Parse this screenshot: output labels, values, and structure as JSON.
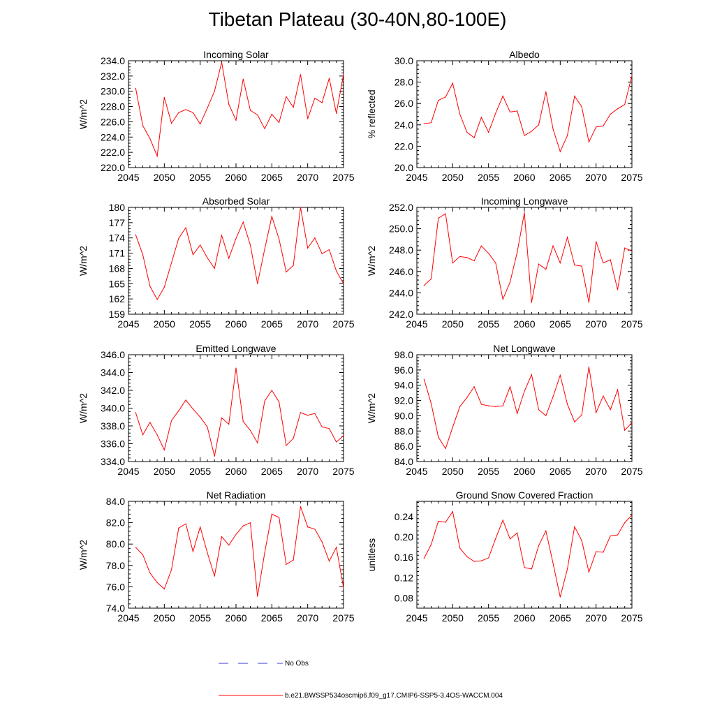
{
  "title": "Tibetan Plateau (30-40N,80-100E)",
  "colors": {
    "model": "#ff0000",
    "obs": "#3a3ad6",
    "axis": "#000000"
  },
  "legend": [
    {
      "label": "No Obs",
      "style": "dashed",
      "color": "#3a3ad6"
    },
    {
      "label": "b.e21.BWSSP534oscmip6.f09_g17.CMIP6-SSP5-3.4OS-WACCM.004",
      "style": "solid",
      "color": "#ff0000"
    }
  ],
  "chart_data": [
    {
      "type": "line",
      "title": "Incoming Solar",
      "ylabel": "W/m^2",
      "ylim": [
        220,
        234
      ],
      "yticks": [
        220,
        222,
        224,
        226,
        228,
        230,
        232,
        234
      ],
      "ydecimals": 1,
      "xlim": [
        2045,
        2075
      ],
      "xticks": [
        2045,
        2050,
        2055,
        2060,
        2065,
        2070,
        2075
      ],
      "x": [
        2046,
        2047,
        2048,
        2049,
        2050,
        2051,
        2052,
        2053,
        2054,
        2055,
        2056,
        2057,
        2058,
        2059,
        2060,
        2061,
        2062,
        2063,
        2064,
        2065,
        2066,
        2067,
        2068,
        2069,
        2070,
        2071,
        2072,
        2073,
        2074,
        2075
      ],
      "values": [
        230.4,
        225.5,
        223.8,
        221.5,
        229.2,
        225.8,
        227.2,
        227.6,
        227.2,
        225.7,
        227.8,
        230.0,
        233.8,
        228.3,
        226.2,
        231.6,
        227.5,
        226.9,
        225.1,
        227.0,
        225.9,
        229.3,
        227.9,
        232.2,
        226.4,
        229.1,
        228.5,
        231.7,
        227.1,
        232.2
      ]
    },
    {
      "type": "line",
      "title": "Albedo",
      "ylabel": "% reflected",
      "ylim": [
        20,
        30
      ],
      "yticks": [
        20,
        22,
        24,
        26,
        28,
        30
      ],
      "ydecimals": 1,
      "xlim": [
        2045,
        2075
      ],
      "xticks": [
        2045,
        2050,
        2055,
        2060,
        2065,
        2070,
        2075
      ],
      "x": [
        2046,
        2047,
        2048,
        2049,
        2050,
        2051,
        2052,
        2053,
        2054,
        2055,
        2056,
        2057,
        2058,
        2059,
        2060,
        2061,
        2062,
        2063,
        2064,
        2065,
        2066,
        2067,
        2068,
        2069,
        2070,
        2071,
        2072,
        2073,
        2074,
        2075
      ],
      "values": [
        24.1,
        24.2,
        26.3,
        26.6,
        27.9,
        25.0,
        23.3,
        22.8,
        24.7,
        23.3,
        25.1,
        26.7,
        25.2,
        25.3,
        23.0,
        23.4,
        24.0,
        27.1,
        23.6,
        21.5,
        23.0,
        26.7,
        25.7,
        22.4,
        23.8,
        23.9,
        25.0,
        25.5,
        25.9,
        28.6
      ]
    },
    {
      "type": "line",
      "title": "Absorbed Solar",
      "ylabel": "W/m^2",
      "ylim": [
        159,
        180
      ],
      "yticks": [
        159,
        162,
        165,
        168,
        171,
        174,
        177,
        180
      ],
      "ydecimals": 0,
      "xlim": [
        2045,
        2075
      ],
      "xticks": [
        2045,
        2050,
        2055,
        2060,
        2065,
        2070,
        2075
      ],
      "x": [
        2046,
        2047,
        2048,
        2049,
        2050,
        2051,
        2052,
        2053,
        2054,
        2055,
        2056,
        2057,
        2058,
        2059,
        2060,
        2061,
        2062,
        2063,
        2064,
        2065,
        2066,
        2067,
        2068,
        2069,
        2070,
        2071,
        2072,
        2073,
        2074,
        2075
      ],
      "values": [
        174.6,
        170.7,
        164.5,
        161.9,
        164.3,
        169.1,
        173.9,
        176.0,
        170.7,
        172.6,
        170.1,
        168.0,
        174.5,
        170.0,
        173.9,
        177.1,
        172.6,
        165.0,
        171.8,
        178.2,
        173.8,
        167.3,
        168.6,
        180.0,
        172.0,
        174.0,
        170.9,
        171.7,
        167.5,
        165.0
      ]
    },
    {
      "type": "line",
      "title": "Incoming Longwave",
      "ylabel": "W/m^2",
      "ylim": [
        242,
        252
      ],
      "yticks": [
        242,
        244,
        246,
        248,
        250,
        252
      ],
      "ydecimals": 1,
      "xlim": [
        2045,
        2075
      ],
      "xticks": [
        2045,
        2050,
        2055,
        2060,
        2065,
        2070,
        2075
      ],
      "x": [
        2046,
        2047,
        2048,
        2049,
        2050,
        2051,
        2052,
        2053,
        2054,
        2055,
        2056,
        2057,
        2058,
        2059,
        2060,
        2061,
        2062,
        2063,
        2064,
        2065,
        2066,
        2067,
        2068,
        2069,
        2070,
        2071,
        2072,
        2073,
        2074,
        2075
      ],
      "values": [
        244.7,
        245.3,
        251.0,
        251.4,
        246.8,
        247.4,
        247.3,
        247.0,
        248.4,
        247.7,
        246.8,
        243.4,
        245.0,
        247.8,
        251.5,
        243.1,
        246.7,
        246.2,
        248.4,
        246.8,
        249.2,
        246.6,
        246.5,
        243.1,
        248.8,
        246.8,
        247.1,
        244.3,
        248.2,
        247.9
      ]
    },
    {
      "type": "line",
      "title": "Emitted Longwave",
      "ylabel": "W/m^2",
      "ylim": [
        334,
        346
      ],
      "yticks": [
        334,
        336,
        338,
        340,
        342,
        344,
        346
      ],
      "ydecimals": 1,
      "xlim": [
        2045,
        2075
      ],
      "xticks": [
        2045,
        2050,
        2055,
        2060,
        2065,
        2070,
        2075
      ],
      "x": [
        2046,
        2047,
        2048,
        2049,
        2050,
        2051,
        2052,
        2053,
        2054,
        2055,
        2056,
        2057,
        2058,
        2059,
        2060,
        2061,
        2062,
        2063,
        2064,
        2065,
        2066,
        2067,
        2068,
        2069,
        2070,
        2071,
        2072,
        2073,
        2074,
        2075
      ],
      "values": [
        339.5,
        337.0,
        338.4,
        337.0,
        335.3,
        338.6,
        339.7,
        340.9,
        339.9,
        339.0,
        337.9,
        334.6,
        338.9,
        338.2,
        344.5,
        338.5,
        337.5,
        336.1,
        340.8,
        342.0,
        340.7,
        335.8,
        336.6,
        339.5,
        339.2,
        339.4,
        337.9,
        337.7,
        336.2,
        336.9
      ]
    },
    {
      "type": "line",
      "title": "Net Longwave",
      "ylabel": "W/m^2",
      "ylim": [
        84,
        98
      ],
      "yticks": [
        84,
        86,
        88,
        90,
        92,
        94,
        96,
        98
      ],
      "ydecimals": 1,
      "xlim": [
        2045,
        2075
      ],
      "xticks": [
        2045,
        2050,
        2055,
        2060,
        2065,
        2070,
        2075
      ],
      "x": [
        2046,
        2047,
        2048,
        2049,
        2050,
        2051,
        2052,
        2053,
        2054,
        2055,
        2056,
        2057,
        2058,
        2059,
        2060,
        2061,
        2062,
        2063,
        2064,
        2065,
        2066,
        2067,
        2068,
        2069,
        2070,
        2071,
        2072,
        2073,
        2074,
        2075
      ],
      "values": [
        94.8,
        91.6,
        87.2,
        85.7,
        88.5,
        91.2,
        92.4,
        93.8,
        91.5,
        91.3,
        91.2,
        91.3,
        93.8,
        90.3,
        93.2,
        95.4,
        90.8,
        90.0,
        92.5,
        95.3,
        91.5,
        89.2,
        90.1,
        96.4,
        90.4,
        92.6,
        90.8,
        93.4,
        88.1,
        89.1
      ]
    },
    {
      "type": "line",
      "title": "Net Radiation",
      "ylabel": "W/m^2",
      "ylim": [
        74,
        84
      ],
      "yticks": [
        74,
        76,
        78,
        80,
        82,
        84
      ],
      "ydecimals": 1,
      "xlim": [
        2045,
        2075
      ],
      "xticks": [
        2045,
        2050,
        2055,
        2060,
        2065,
        2070,
        2075
      ],
      "x": [
        2046,
        2047,
        2048,
        2049,
        2050,
        2051,
        2052,
        2053,
        2054,
        2055,
        2056,
        2057,
        2058,
        2059,
        2060,
        2061,
        2062,
        2063,
        2064,
        2065,
        2066,
        2067,
        2068,
        2069,
        2070,
        2071,
        2072,
        2073,
        2074,
        2075
      ],
      "values": [
        79.7,
        79.0,
        77.3,
        76.4,
        75.8,
        77.6,
        81.5,
        81.9,
        79.3,
        81.6,
        79.2,
        77.0,
        80.7,
        79.9,
        80.9,
        81.7,
        82.0,
        75.1,
        79.2,
        82.8,
        82.5,
        78.1,
        78.5,
        83.5,
        81.6,
        81.4,
        80.2,
        78.4,
        79.7,
        75.9
      ]
    },
    {
      "type": "line",
      "title": "Ground Snow Covered Fraction",
      "ylabel": "unitless",
      "ylim": [
        0.06,
        0.27
      ],
      "yticks": [
        0.08,
        0.12,
        0.16,
        0.2,
        0.24
      ],
      "ydecimals": 2,
      "xlim": [
        2045,
        2075
      ],
      "xticks": [
        2045,
        2050,
        2055,
        2060,
        2065,
        2070,
        2075
      ],
      "x": [
        2046,
        2047,
        2048,
        2049,
        2050,
        2051,
        2052,
        2053,
        2054,
        2055,
        2056,
        2057,
        2058,
        2059,
        2060,
        2061,
        2062,
        2063,
        2064,
        2065,
        2066,
        2067,
        2068,
        2069,
        2070,
        2071,
        2072,
        2073,
        2074,
        2075
      ],
      "values": [
        0.158,
        0.185,
        0.231,
        0.229,
        0.25,
        0.178,
        0.161,
        0.152,
        0.153,
        0.159,
        0.197,
        0.233,
        0.196,
        0.208,
        0.14,
        0.137,
        0.183,
        0.212,
        0.148,
        0.082,
        0.137,
        0.22,
        0.193,
        0.131,
        0.171,
        0.17,
        0.202,
        0.204,
        0.228,
        0.243
      ]
    }
  ]
}
